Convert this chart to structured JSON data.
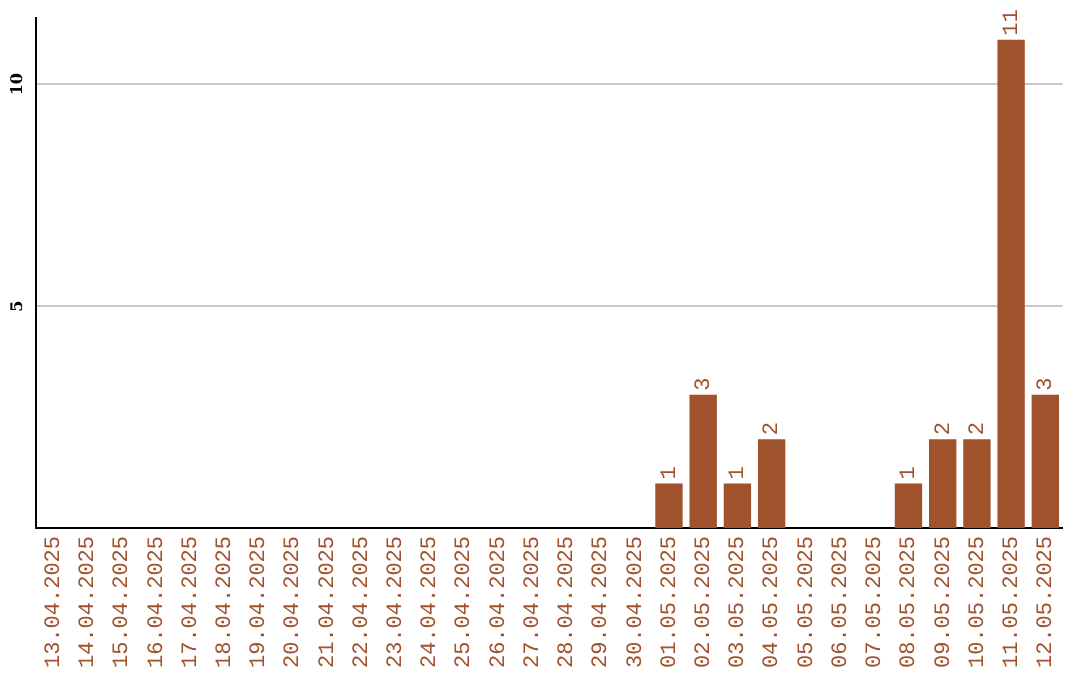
{
  "chart_data": {
    "type": "bar",
    "categories": [
      "13.04.2025",
      "14.04.2025",
      "15.04.2025",
      "16.04.2025",
      "17.04.2025",
      "18.04.2025",
      "19.04.2025",
      "20.04.2025",
      "21.04.2025",
      "22.04.2025",
      "23.04.2025",
      "24.04.2025",
      "25.04.2025",
      "26.04.2025",
      "27.04.2025",
      "28.04.2025",
      "29.04.2025",
      "30.04.2025",
      "01.05.2025",
      "02.05.2025",
      "03.05.2025",
      "04.05.2025",
      "05.05.2025",
      "06.05.2025",
      "07.05.2025",
      "08.05.2025",
      "09.05.2025",
      "10.05.2025",
      "11.05.2025",
      "12.05.2025"
    ],
    "values": [
      0,
      0,
      0,
      0,
      0,
      0,
      0,
      0,
      0,
      0,
      0,
      0,
      0,
      0,
      0,
      0,
      0,
      0,
      1,
      3,
      1,
      2,
      0,
      0,
      0,
      1,
      2,
      2,
      11,
      3
    ],
    "value_labels": [
      null,
      null,
      null,
      null,
      null,
      null,
      null,
      null,
      null,
      null,
      null,
      null,
      null,
      null,
      null,
      null,
      null,
      null,
      "1",
      "3",
      "1",
      "2",
      null,
      null,
      null,
      "1",
      "2",
      "2",
      "11",
      "3"
    ],
    "color": "#a0522d",
    "ylim": [
      0,
      11.5
    ],
    "yticks": [
      5,
      10
    ],
    "grid": "y",
    "legend": false
  }
}
